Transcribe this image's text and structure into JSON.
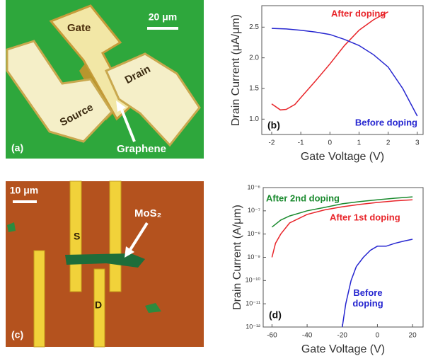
{
  "panel_a": {
    "label": "(a)",
    "gate": "Gate",
    "scale": "20 μm",
    "drain": "Drain",
    "source": "Source",
    "graphene": "Graphene"
  },
  "panel_c": {
    "label": "(c)",
    "scale": "10 μm",
    "material": "MoS₂",
    "source": "S",
    "drain": "D"
  },
  "chart_data": [
    {
      "type": "line",
      "panel_label": "(b)",
      "x_label": "Gate Voltage (V)",
      "y_label": "Drain Current (μA/μm)",
      "xlim": [
        -2.34,
        3.2
      ],
      "ylim": [
        0.75,
        2.85
      ],
      "xticks": [
        -2,
        -1,
        0,
        1,
        2,
        3
      ],
      "yticks": [
        {
          "value": 1,
          "label": "1.0"
        },
        1.5,
        {
          "value": 2,
          "label": "2.0"
        },
        2.5
      ],
      "log_y": false,
      "series": [
        {
          "name": "After doping",
          "color": "#e8252a",
          "x": [
            -2,
            -1.7,
            -1.5,
            -1.2,
            -1,
            -0.5,
            0,
            0.5,
            1,
            1.5,
            2
          ],
          "values": [
            1.25,
            1.15,
            1.16,
            1.24,
            1.35,
            1.62,
            1.9,
            2.2,
            2.45,
            2.62,
            2.75
          ]
        },
        {
          "name": "Before doping",
          "color": "#2626d0",
          "x": [
            -2,
            -1.5,
            -1,
            -0.5,
            0,
            0.5,
            1,
            1.5,
            2,
            2.5,
            3
          ],
          "values": [
            2.48,
            2.47,
            2.45,
            2.42,
            2.38,
            2.3,
            2.2,
            2.05,
            1.85,
            1.5,
            1.05
          ]
        }
      ]
    },
    {
      "type": "line",
      "panel_label": "(d)",
      "x_label": "Gate Voltage (V)",
      "y_label": "Drain Current (A/μm)",
      "xlim": [
        -65,
        26
      ],
      "ylim": [
        1e-12,
        1e-06
      ],
      "xticks": [
        -60,
        -40,
        -20,
        0,
        20
      ],
      "yticks": [
        {
          "value": 1e-12,
          "label": "10⁻¹²"
        },
        {
          "value": 1e-11,
          "label": "10⁻¹¹"
        },
        {
          "value": 1e-10,
          "label": "10⁻¹⁰"
        },
        {
          "value": 1e-09,
          "label": "10⁻⁹"
        },
        {
          "value": 1e-08,
          "label": "10⁻⁸"
        },
        {
          "value": 1e-07,
          "label": "10⁻⁷"
        },
        {
          "value": 1e-06,
          "label": "10⁻⁶"
        }
      ],
      "log_y": true,
      "series": [
        {
          "name": "After 2nd doping",
          "color": "#1a8a2e",
          "x": [
            -60,
            -55,
            -50,
            -40,
            -30,
            -20,
            -10,
            0,
            10,
            20
          ],
          "values": [
            2e-08,
            4e-08,
            6e-08,
            1e-07,
            1.4e-07,
            2e-07,
            2.5e-07,
            3e-07,
            3.5e-07,
            4e-07
          ]
        },
        {
          "name": "After 1st doping",
          "color": "#e8252a",
          "x": [
            -60,
            -58,
            -55,
            -50,
            -40,
            -30,
            -20,
            -10,
            0,
            10,
            20
          ],
          "values": [
            1e-09,
            4e-09,
            1e-08,
            3e-08,
            7e-08,
            1.1e-07,
            1.5e-07,
            1.9e-07,
            2.3e-07,
            2.7e-07,
            3e-07
          ]
        },
        {
          "name": "Before doping",
          "color": "#2626d0",
          "x": [
            -20,
            -18,
            -15,
            -12,
            -8,
            -4,
            0,
            5,
            10,
            15,
            20
          ],
          "values": [
            1e-12,
            1e-11,
            1e-10,
            4e-10,
            1e-09,
            2e-09,
            3e-09,
            3e-09,
            4e-09,
            5e-09,
            6e-09
          ]
        }
      ]
    }
  ]
}
